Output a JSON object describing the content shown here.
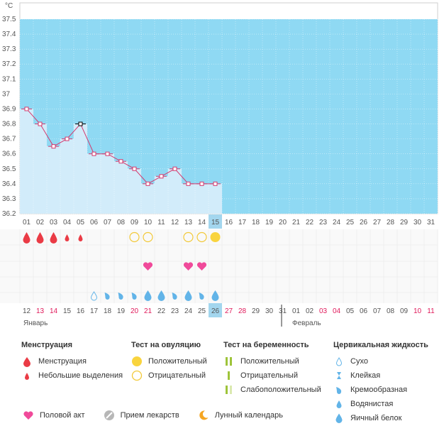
{
  "chart_data": {
    "type": "line",
    "ylabel": "°C",
    "ylim": [
      36.2,
      37.5
    ],
    "y_ticks": [
      "36.2",
      "36.3",
      "36.4",
      "36.5",
      "36.6",
      "36.7",
      "36.8",
      "36.9",
      "37",
      "37.1",
      "37.2",
      "37.3",
      "37.4",
      "37.5"
    ],
    "x_top": [
      "01",
      "02",
      "03",
      "04",
      "05",
      "06",
      "07",
      "08",
      "09",
      "10",
      "11",
      "12",
      "13",
      "14",
      "15",
      "16",
      "17",
      "18",
      "19",
      "20",
      "21",
      "22",
      "23",
      "24",
      "25",
      "26",
      "27",
      "28",
      "29",
      "30",
      "31"
    ],
    "x_bottom": [
      "12",
      "13",
      "14",
      "15",
      "16",
      "17",
      "18",
      "19",
      "20",
      "21",
      "22",
      "23",
      "24",
      "25",
      "26",
      "27",
      "28",
      "29",
      "30",
      "31",
      "01",
      "02",
      "03",
      "04",
      "05",
      "06",
      "07",
      "08",
      "09",
      "10",
      "11"
    ],
    "bottom_red_indices": [
      1,
      2,
      8,
      9,
      15,
      16,
      22,
      23,
      29,
      30
    ],
    "current_index": 14,
    "temperatures": [
      36.9,
      36.8,
      36.65,
      36.7,
      36.8,
      36.6,
      36.6,
      36.55,
      36.5,
      36.4,
      36.45,
      36.5,
      36.4,
      36.4,
      36.4
    ],
    "months": [
      "Январь",
      "Февраль"
    ],
    "menstruation": [
      "big",
      "big",
      "big",
      "small",
      "small"
    ],
    "ovulation_test": {
      "8": "negative",
      "9": "negative",
      "12": "negative",
      "13": "negative",
      "14": "positive"
    },
    "intercourse": [
      9,
      12,
      13
    ],
    "cervical_fluid": {
      "5": "dry",
      "6": "creamy",
      "7": "creamy",
      "8": "creamy",
      "9": "eggwhite",
      "10": "eggwhite",
      "11": "creamy",
      "12": "eggwhite",
      "13": "creamy",
      "14": "eggwhite"
    },
    "colors": {
      "background": "#8fd9f3",
      "fill": "#d2ecfa",
      "line": "#d33a6e",
      "menstruation": "#ea3b45",
      "ovulation": "#f9d43e",
      "heart": "#f04a9a",
      "fluid": "#62b4e8",
      "today": "#a3d6ee"
    }
  },
  "legend": {
    "menstruation": {
      "title": "Менструация",
      "items": [
        "Менструация",
        "Небольшие выделения"
      ]
    },
    "ovulation": {
      "title": "Тест на овуляцию",
      "items": [
        "Положительный",
        "Отрицательный"
      ]
    },
    "pregnancy": {
      "title": "Тест на беременность",
      "items": [
        "Положительный",
        "Отрицательный",
        "Слабоположительный"
      ]
    },
    "fluid": {
      "title": "Цервикальная жидкость",
      "items": [
        "Сухо",
        "Клейкая",
        "Кремообразная",
        "Водянистая",
        "Яичный белок"
      ]
    },
    "other": [
      "Половой акт",
      "Прием лекарств",
      "Лунный календарь"
    ]
  }
}
